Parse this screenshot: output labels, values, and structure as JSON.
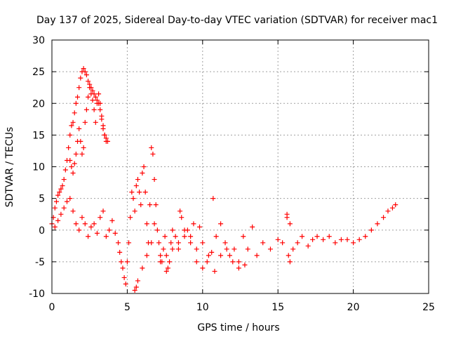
{
  "chart_data": {
    "type": "scatter",
    "title": "Day 137 of 2025, Sidereal Day-to-day VTEC variation (SDTVAR) for receiver mac1",
    "xlabel": "GPS time / hours",
    "ylabel": "SDTVAR / TECUs",
    "xlim": [
      0,
      25
    ],
    "ylim": [
      -10,
      30
    ],
    "xticks": [
      0,
      5,
      10,
      15,
      20,
      25
    ],
    "yticks": [
      -10,
      -5,
      0,
      5,
      10,
      15,
      20,
      25,
      30
    ],
    "grid": true,
    "legend": "none",
    "marker": "plus",
    "color": "#ff0000",
    "series": [
      {
        "name": "SDTVAR",
        "x": [
          0.0,
          0.1,
          0.2,
          0.3,
          0.4,
          0.5,
          0.6,
          0.7,
          0.8,
          0.9,
          1.0,
          1.1,
          1.2,
          1.3,
          1.4,
          1.5,
          1.6,
          1.7,
          1.8,
          1.9,
          2.0,
          2.1,
          2.2,
          2.3,
          2.4,
          2.5,
          2.6,
          2.7,
          2.8,
          2.9,
          3.0,
          3.1,
          3.2,
          3.3,
          3.4,
          3.5,
          3.6,
          1.2,
          1.3,
          1.4,
          1.5,
          1.6,
          1.7,
          1.8,
          1.9,
          2.0,
          2.1,
          2.2,
          2.3,
          2.4,
          2.5,
          2.6,
          2.7,
          2.8,
          2.9,
          3.0,
          3.1,
          3.2,
          3.3,
          3.4,
          3.5,
          3.6,
          3.7,
          0.2,
          0.4,
          0.6,
          0.8,
          1.0,
          1.2,
          1.4,
          1.6,
          1.8,
          2.0,
          2.2,
          2.4,
          2.6,
          2.8,
          3.0,
          3.2,
          3.4,
          3.6,
          3.8,
          4.0,
          4.2,
          4.4,
          4.5,
          4.6,
          4.7,
          4.8,
          4.9,
          5.0,
          5.1,
          5.2,
          5.3,
          5.4,
          5.5,
          5.6,
          5.7,
          5.8,
          5.9,
          6.0,
          6.1,
          6.2,
          6.3,
          6.4,
          6.5,
          6.6,
          6.7,
          6.8,
          6.9,
          7.0,
          7.1,
          7.2,
          7.3,
          7.4,
          7.5,
          7.6,
          7.7,
          7.8,
          7.9,
          8.0,
          8.2,
          8.4,
          8.6,
          8.8,
          9.0,
          9.2,
          9.4,
          9.6,
          9.8,
          10.0,
          10.3,
          10.6,
          10.9,
          11.2,
          11.5,
          11.8,
          12.1,
          12.4,
          12.7,
          13.0,
          13.3,
          13.6,
          14.0,
          14.5,
          15.0,
          15.3,
          15.6,
          15.8,
          16.0,
          16.3,
          16.6,
          17.0,
          17.3,
          17.6,
          18.0,
          18.4,
          18.8,
          19.2,
          19.6,
          20.0,
          20.4,
          20.8,
          21.2,
          21.6,
          22.0,
          22.3,
          22.6,
          22.8,
          5.5,
          5.6,
          5.7,
          6.0,
          6.3,
          6.6,
          6.8,
          7.2,
          7.6,
          8.0,
          8.4,
          8.8,
          9.2,
          9.6,
          10.0,
          10.4,
          10.8,
          11.2,
          11.6,
          12.0,
          12.4,
          12.8,
          15.6,
          15.7,
          15.8,
          10.7,
          8.5
        ],
        "y": [
          1.0,
          2.0,
          3.5,
          4.5,
          5.5,
          6.0,
          6.5,
          7.0,
          8.0,
          9.5,
          11.0,
          13.0,
          15.0,
          16.5,
          17.0,
          18.5,
          20.0,
          21.0,
          22.5,
          24.0,
          25.0,
          25.5,
          25.0,
          24.5,
          23.5,
          23.0,
          22.5,
          22.0,
          21.5,
          21.0,
          20.5,
          20.0,
          19.0,
          17.5,
          16.0,
          15.0,
          14.0,
          11.0,
          10.0,
          9.0,
          10.5,
          12.0,
          14.0,
          16.0,
          14.0,
          12.0,
          13.0,
          17.0,
          19.0,
          21.0,
          22.5,
          21.5,
          20.5,
          19.0,
          17.0,
          20.0,
          21.5,
          20.0,
          18.0,
          16.5,
          15.0,
          14.5,
          14.0,
          0.5,
          1.5,
          2.5,
          3.5,
          4.5,
          5.0,
          3.0,
          1.0,
          0.0,
          2.0,
          1.0,
          -1.0,
          0.5,
          1.0,
          -0.5,
          2.0,
          3.0,
          -1.0,
          0.0,
          1.5,
          -0.5,
          -2.0,
          -3.5,
          -5.0,
          -6.0,
          -7.5,
          -8.5,
          -5.0,
          -2.0,
          2.0,
          6.0,
          5.0,
          3.0,
          7.0,
          8.0,
          6.0,
          4.0,
          9.0,
          10.0,
          6.0,
          1.0,
          -2.0,
          4.0,
          13.0,
          12.0,
          8.0,
          4.0,
          0.0,
          -2.0,
          -4.0,
          -5.0,
          -3.0,
          -1.0,
          -4.0,
          -6.0,
          -5.0,
          -2.0,
          0.0,
          -1.0,
          -3.0,
          2.0,
          -1.0,
          0.0,
          -2.0,
          1.0,
          -3.0,
          0.5,
          -2.0,
          -5.0,
          -3.5,
          -1.0,
          1.0,
          -2.0,
          -4.0,
          -3.0,
          -5.0,
          -1.0,
          -3.0,
          0.5,
          -4.0,
          -2.0,
          -3.0,
          -1.5,
          -2.0,
          2.0,
          1.0,
          -3.0,
          -2.0,
          -1.0,
          -2.5,
          -1.5,
          -1.0,
          -1.5,
          -1.0,
          -2.0,
          -1.5,
          -1.5,
          -2.0,
          -1.5,
          -1.0,
          0.0,
          1.0,
          2.0,
          3.0,
          3.5,
          4.0,
          -9.5,
          -9.0,
          -8.0,
          -6.0,
          -4.0,
          -2.0,
          1.0,
          -5.0,
          -6.5,
          -3.0,
          -2.0,
          0.0,
          -1.0,
          -5.0,
          -6.0,
          -4.0,
          -6.5,
          -4.0,
          -3.0,
          -5.0,
          -6.0,
          -5.5,
          2.5,
          -4.0,
          -5.0,
          5.0,
          3.0
        ]
      }
    ]
  }
}
